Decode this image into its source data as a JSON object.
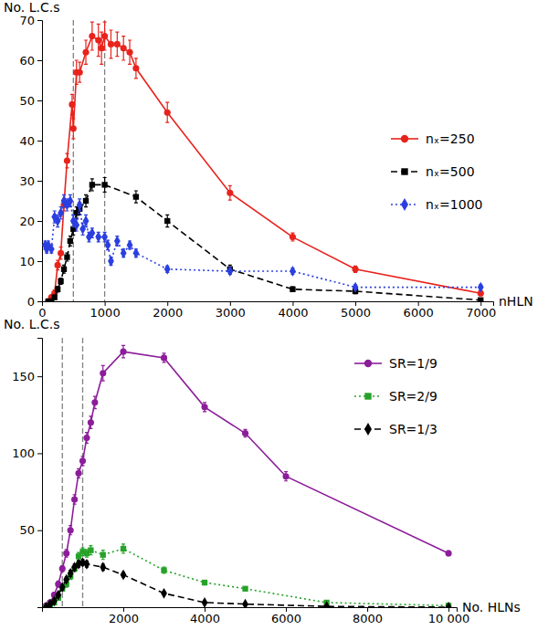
{
  "chart_data": [
    {
      "type": "line",
      "x_label": "nHLN",
      "y_label": "No. L.C.s",
      "xlim": [
        0,
        7200
      ],
      "ylim": [
        0,
        70
      ],
      "xticks": [
        0,
        1000,
        2000,
        3000,
        4000,
        5000,
        6000,
        7000
      ],
      "yticks": [
        0,
        10,
        20,
        30,
        40,
        50,
        60,
        70
      ],
      "vlines": [
        500,
        1000
      ],
      "legend": "right",
      "series": [
        {
          "name": "nₓ=250",
          "color": "#e8231c",
          "marker": "circle",
          "line_style": "solid",
          "x": [
            100,
            150,
            200,
            250,
            300,
            350,
            400,
            480,
            500,
            550,
            600,
            700,
            800,
            900,
            950,
            1000,
            1100,
            1200,
            1300,
            1400,
            1500,
            2000,
            3000,
            4000,
            5000,
            7000
          ],
          "values": [
            0,
            1,
            2,
            9,
            12,
            24,
            35,
            49,
            43,
            57,
            57,
            62,
            66,
            65,
            63,
            66,
            64,
            64,
            63,
            62,
            58,
            47,
            27,
            16,
            8,
            2
          ],
          "errors": [
            0.3,
            0.5,
            0.8,
            1.2,
            1.5,
            1.5,
            1.8,
            2.5,
            2.5,
            3,
            2.5,
            3,
            3.5,
            4,
            4,
            3.5,
            3.5,
            3,
            3,
            3,
            2.5,
            2.5,
            1.8,
            1,
            0.8,
            0.6
          ]
        },
        {
          "name": "nₓ=500",
          "color": "#000000",
          "marker": "square",
          "line_style": "dashed",
          "x": [
            100,
            150,
            200,
            250,
            300,
            350,
            400,
            450,
            500,
            550,
            600,
            700,
            800,
            1000,
            1500,
            2000,
            3000,
            4000,
            5000,
            7000
          ],
          "values": [
            0,
            0,
            1,
            3,
            5,
            8,
            11,
            15,
            18,
            22,
            23,
            25,
            29,
            29,
            26,
            20,
            8,
            3,
            2.5,
            0.3
          ],
          "errors": [
            0.2,
            0.3,
            0.5,
            0.7,
            0.8,
            1,
            1,
            1.2,
            1.5,
            1.5,
            1.5,
            1.5,
            1.5,
            1.8,
            1.5,
            1.5,
            1,
            0.6,
            0.6,
            0.3
          ]
        },
        {
          "name": "nₓ=1000",
          "color": "#2b3fe0",
          "marker": "diamond",
          "line_style": "dotted",
          "x": [
            50,
            75,
            100,
            150,
            200,
            250,
            300,
            350,
            400,
            450,
            500,
            550,
            600,
            650,
            700,
            750,
            800,
            900,
            1000,
            1050,
            1100,
            1200,
            1300,
            1400,
            1500,
            2000,
            3000,
            4000,
            5000,
            7000
          ],
          "values": [
            14,
            13,
            14,
            13,
            21,
            20,
            22,
            25,
            24,
            25,
            20,
            19,
            24,
            18,
            20,
            16,
            17,
            16,
            16,
            14,
            10,
            15,
            12,
            14,
            12,
            8,
            7.5,
            7.5,
            3.5,
            3.5
          ],
          "errors": [
            1,
            1,
            1,
            1,
            1.5,
            1.5,
            1.5,
            1.5,
            1.5,
            1.5,
            1.5,
            1.5,
            1.5,
            1.5,
            1.5,
            1.2,
            1.2,
            1.2,
            1.2,
            1.2,
            1,
            1.2,
            1,
            1,
            1,
            0.8,
            0.8,
            0.8,
            0.6,
            0.6
          ]
        }
      ]
    },
    {
      "type": "line",
      "x_label": "No. HLNs",
      "y_label": "No. L.C.s",
      "xlim": [
        0,
        10200
      ],
      "ylim": [
        0,
        175
      ],
      "xticks": [
        2000,
        4000,
        6000,
        8000,
        {
          "value": 10000,
          "label": "10 000"
        }
      ],
      "yticks": [
        50,
        100,
        150
      ],
      "vlines": [
        500,
        1000
      ],
      "legend": "upper right",
      "series": [
        {
          "name": "SR=1/9",
          "color": "#8c1d9a",
          "marker": "circle",
          "line_style": "solid",
          "x": [
            100,
            200,
            300,
            400,
            500,
            600,
            700,
            800,
            900,
            1000,
            1100,
            1200,
            1300,
            1500,
            2000,
            3000,
            4000,
            5000,
            6000,
            10000
          ],
          "values": [
            1,
            3,
            8,
            15,
            25,
            35,
            50,
            70,
            87,
            95,
            110,
            120,
            133,
            152,
            166,
            162,
            130,
            113,
            85,
            35
          ],
          "errors": [
            0.5,
            1,
            1.5,
            2,
            2,
            2.5,
            3,
            3,
            3,
            3,
            3.5,
            4,
            4,
            5,
            4,
            3,
            3,
            2.5,
            3,
            1.5
          ]
        },
        {
          "name": "SR=2/9",
          "color": "#27a229",
          "marker": "square",
          "line_style": "dotted",
          "x": [
            100,
            200,
            300,
            400,
            500,
            600,
            700,
            800,
            900,
            1000,
            1100,
            1200,
            1500,
            2000,
            3000,
            4000,
            5000,
            7000,
            10000
          ],
          "values": [
            0,
            1,
            3,
            6,
            12,
            15,
            20,
            25,
            33,
            36,
            35,
            37,
            34,
            38,
            24,
            16,
            12,
            3,
            1
          ],
          "errors": [
            0.3,
            0.5,
            1,
            1,
            1.5,
            2,
            2,
            2,
            2.5,
            2.5,
            2.5,
            3,
            3,
            3,
            2,
            1.5,
            1,
            0.8,
            0.5
          ]
        },
        {
          "name": "SR=1/3",
          "color": "#000000",
          "marker": "diamond",
          "line_style": "dashed",
          "x": [
            100,
            200,
            300,
            400,
            500,
            600,
            700,
            800,
            900,
            1000,
            1100,
            1500,
            2000,
            3000,
            4000,
            5000,
            7000,
            10000
          ],
          "values": [
            0,
            2,
            4,
            8,
            13,
            18,
            22,
            26,
            28,
            29,
            28,
            26,
            21,
            9,
            3,
            2,
            0.5,
            0
          ],
          "errors": [
            0.3,
            0.5,
            0.8,
            1,
            1.5,
            1.5,
            2,
            2,
            2,
            2,
            2,
            2,
            1.5,
            1,
            0.6,
            0.5,
            0.3,
            0.2
          ]
        }
      ]
    }
  ]
}
